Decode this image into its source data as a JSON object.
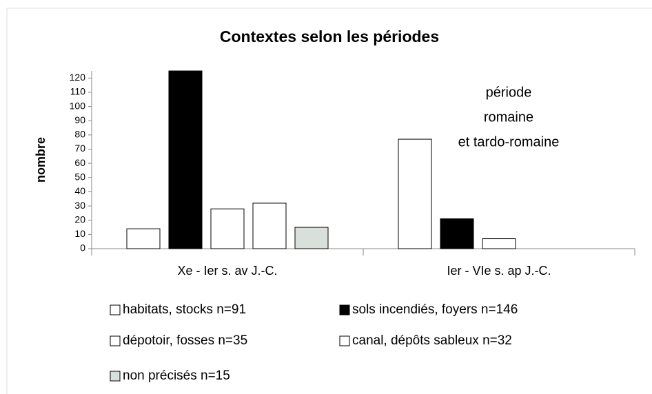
{
  "chart_data": {
    "type": "bar",
    "title": "Contextes selon les périodes",
    "y_label": "nombre",
    "annotation": [
      "période",
      "romaine",
      "et tardo-romaine"
    ],
    "categories": [
      "Xe - Ier s. av J.-C.",
      "Ier - VIe s. ap J.-C."
    ],
    "series": [
      {
        "name": "habitats, stocks n=91",
        "color": "#ffffff",
        "values": [
          14,
          77
        ]
      },
      {
        "name": "sols incendiés, foyers n=146",
        "color": "#000000",
        "values": [
          125,
          21
        ]
      },
      {
        "name": "dépotoir, fosses n=35",
        "color": "#ffffff",
        "values": [
          28,
          7
        ]
      },
      {
        "name": "canal, dépôts sableux n=32",
        "color": "#ffffff",
        "values": [
          32,
          null
        ]
      },
      {
        "name": "non précisés n=15",
        "color": "#d9e0dc",
        "values": [
          15,
          null
        ]
      }
    ],
    "ylim": [
      0,
      125
    ],
    "yticks": [
      0,
      10,
      20,
      30,
      40,
      50,
      60,
      70,
      80,
      90,
      100,
      110,
      120
    ],
    "grid": false
  }
}
